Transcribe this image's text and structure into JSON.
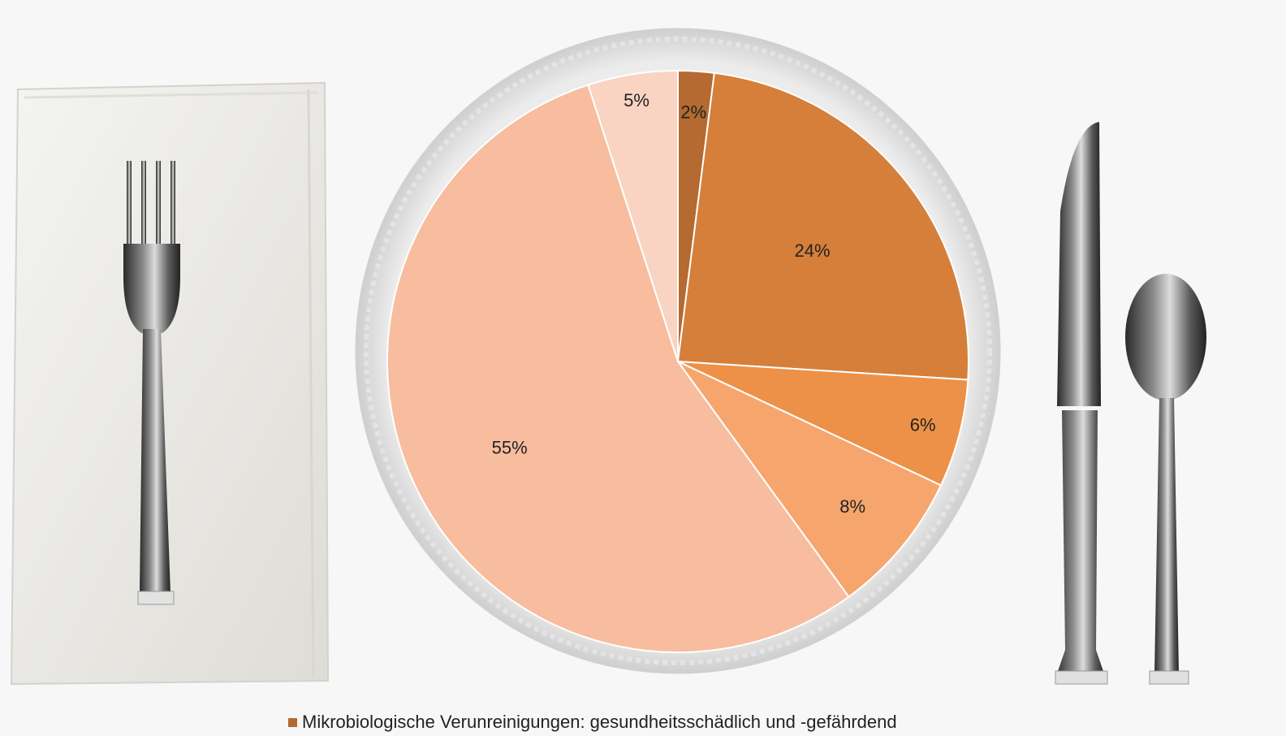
{
  "chart_data": {
    "type": "pie",
    "title": "",
    "start_angle_deg": 0,
    "direction": "clockwise",
    "slices": [
      {
        "label": "2%",
        "value": 2,
        "color": "#b46a30"
      },
      {
        "label": "24%",
        "value": 24,
        "color": "#d57f3a"
      },
      {
        "label": "6%",
        "value": 6,
        "color": "#ec9147"
      },
      {
        "label": "8%",
        "value": 8,
        "color": "#f6a56d"
      },
      {
        "label": "55%",
        "value": 55,
        "color": "#f7bd9e"
      },
      {
        "label": "5%",
        "value": 5,
        "color": "#f9d4c2"
      }
    ],
    "legend": {
      "position": "bottom",
      "entries": [
        {
          "text": "Mikrobiologische Verunreinigungen: gesundheitsschädlich und -gefährdend",
          "color": "#b46a30"
        }
      ]
    }
  },
  "background": {
    "icons": [
      "napkin-icon",
      "fork-icon",
      "plate-icon",
      "knife-icon",
      "spoon-icon"
    ]
  }
}
